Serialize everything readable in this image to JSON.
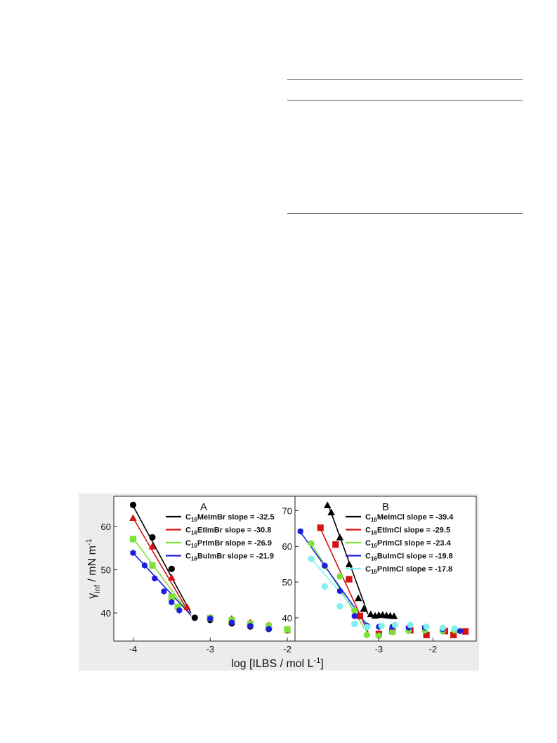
{
  "document": {
    "table_rules": [
      {
        "name": "table-top-rule"
      },
      {
        "name": "table-header-rule"
      },
      {
        "name": "table-bottom-rule"
      }
    ]
  },
  "chart_data": [
    {
      "type": "scatter",
      "panel_label": "A",
      "ylabel": "γ",
      "ylabel_sub": "inf",
      "ylabel_rest": " / mN m",
      "ylabel_sup": "-1",
      "xlabel": "log [ILBS / mol L",
      "xlabel_sup": "-1",
      "xlabel_end": "]",
      "xlim": [
        -4.25,
        -1.9
      ],
      "ylim": [
        33.5,
        67
      ],
      "xticks": [
        -4,
        -3,
        -2
      ],
      "xtick_labels": [
        "-4",
        "-3",
        "-2"
      ],
      "yticks": [
        40,
        50,
        60
      ],
      "ytick_labels": [
        "40",
        "50",
        "60"
      ],
      "legend_position": "top-right",
      "series": [
        {
          "name_pre": "C",
          "name_sub": "16",
          "name_post": "MeImBr slope = -32.5",
          "color": "#000000",
          "marker": "circle",
          "x": [
            -4.0,
            -3.75,
            -3.5,
            -3.2,
            -3.0,
            -2.72,
            -2.48,
            -2.24,
            -2.0
          ],
          "y": [
            65.0,
            57.5,
            50.2,
            38.9,
            38.4,
            37.6,
            36.9,
            36.3,
            36.0
          ],
          "fit_x": [
            -4.0,
            -3.25
          ],
          "fit_y": [
            64.8,
            40.0
          ]
        },
        {
          "name_pre": "C",
          "name_sub": "16",
          "name_post": "EtImBr slope = -30.8",
          "color": "#d21414",
          "marker": "triangle",
          "x": [
            -4.0,
            -3.75,
            -3.5,
            -3.3,
            -3.0,
            -2.72,
            -2.48,
            -2.24,
            -2.0
          ],
          "y": [
            62.0,
            55.4,
            48.2,
            41.4,
            38.9,
            38.7,
            37.8,
            37.2,
            36.1
          ],
          "fit_x": [
            -4.0,
            -3.25
          ],
          "fit_y": [
            62.0,
            39.3
          ]
        },
        {
          "name_pre": "C",
          "name_sub": "16",
          "name_post": "PrImBr slope = -26.9",
          "color": "#7ee03a",
          "marker": "square",
          "x": [
            -4.0,
            -3.75,
            -3.5,
            -3.42,
            -3.0,
            -2.72,
            -2.48,
            -2.24,
            -2.0
          ],
          "y": [
            57.1,
            51.0,
            43.7,
            41.4,
            38.8,
            38.3,
            37.5,
            37.0,
            36.2
          ],
          "fit_x": [
            -4.0,
            -3.25
          ],
          "fit_y": [
            57.3,
            39.3
          ]
        },
        {
          "name_pre": "C",
          "name_sub": "16",
          "name_post": "BuImBr slope = -21.9",
          "color": "#1d1ee0",
          "marker": "hexagon",
          "x": [
            -4.0,
            -3.85,
            -3.72,
            -3.6,
            -3.5,
            -3.4,
            -3.0,
            -2.72,
            -2.48,
            -2.24
          ],
          "y": [
            53.9,
            51.0,
            48.0,
            45.0,
            42.5,
            40.6,
            38.7,
            37.8,
            37.0,
            36.3
          ],
          "fit_x": [
            -4.0,
            -3.25
          ],
          "fit_y": [
            53.9,
            39.5
          ]
        }
      ]
    },
    {
      "type": "scatter",
      "panel_label": "B",
      "xlim": [
        -4.55,
        -1.2
      ],
      "ylim": [
        33.5,
        74
      ],
      "xticks": [
        -3,
        -2
      ],
      "xtick_labels": [
        "-3",
        "-2"
      ],
      "yticks": [
        40,
        50,
        60,
        70
      ],
      "ytick_labels": [
        "40",
        "50",
        "60",
        "70"
      ],
      "legend_position": "top-right",
      "series": [
        {
          "name_pre": "C",
          "name_sub": "16",
          "name_post": "MeImCl slope = -39.4",
          "color": "#000000",
          "marker": "triangle",
          "x": [
            -3.95,
            -3.88,
            -3.72,
            -3.55,
            -3.38,
            -3.28,
            -3.15,
            -3.07,
            -3.0,
            -2.93,
            -2.86,
            -2.79,
            -2.72
          ],
          "y": [
            71.5,
            69.5,
            62.5,
            55.0,
            45.5,
            42.5,
            41.0,
            40.6,
            40.8,
            40.9,
            40.7,
            40.6,
            40.5
          ],
          "fit_x": [
            -3.92,
            -3.2
          ],
          "fit_y": [
            71.0,
            41.0
          ]
        },
        {
          "name_pre": "C",
          "name_sub": "16",
          "name_post": "EtImCl slope = -29.5",
          "color": "#d21414",
          "marker": "square",
          "x": [
            -4.08,
            -3.8,
            -3.55,
            -3.35,
            -3.0,
            -2.75,
            -2.42,
            -2.12,
            -1.78,
            -1.62,
            -1.4
          ],
          "y": [
            65.2,
            60.5,
            50.8,
            40.5,
            35.5,
            36.3,
            36.5,
            35.2,
            36.3,
            35.2,
            36.2
          ],
          "fit_x": [
            -4.08,
            -3.2
          ],
          "fit_y": [
            65.0,
            36.0
          ]
        },
        {
          "name_pre": "C",
          "name_sub": "16",
          "name_post": "PrImCl slope = -23.4",
          "color": "#7ee03a",
          "marker": "circle",
          "x": [
            -4.25,
            -4.0,
            -3.72,
            -3.45,
            -3.22,
            -3.0,
            -2.75,
            -2.45,
            -2.15,
            -1.82,
            -1.6
          ],
          "y": [
            60.8,
            54.5,
            51.6,
            42.0,
            35.2,
            35.0,
            36.0,
            36.4,
            36.5,
            36.3,
            36.5
          ],
          "fit_x": [
            -4.25,
            -3.2
          ],
          "fit_y": [
            60.8,
            35.5
          ]
        },
        {
          "name_pre": "C",
          "name_sub": "16",
          "name_post": "BuImCl slope = -19.8",
          "color": "#1d1ee0",
          "marker": "hexagon",
          "x": [
            -4.45,
            -4.0,
            -3.72,
            -3.45,
            -3.22,
            -3.0,
            -2.75,
            -2.45,
            -2.15,
            -1.82,
            -1.5
          ],
          "y": [
            64.2,
            54.6,
            47.5,
            40.5,
            37.8,
            37.5,
            37.5,
            37.3,
            37.3,
            36.8,
            36.3
          ],
          "fit_x": [
            -4.45,
            -3.2
          ],
          "fit_y": [
            64.0,
            37.6
          ]
        },
        {
          "name_pre": "C",
          "name_sub": "16",
          "name_post": "PnImCl slope = -17.8",
          "color": "#7ff0ef",
          "marker": "circle",
          "x": [
            -4.25,
            -4.0,
            -3.72,
            -3.45,
            -3.22,
            -2.95,
            -2.7,
            -2.42,
            -2.12,
            -1.82,
            -1.6
          ],
          "y": [
            56.5,
            48.8,
            43.2,
            38.3,
            37.4,
            37.7,
            38.0,
            38.0,
            37.5,
            37.2,
            37.0
          ],
          "fit_x": [
            -4.25,
            -3.15
          ],
          "fit_y": [
            56.5,
            37.3
          ]
        }
      ]
    }
  ]
}
